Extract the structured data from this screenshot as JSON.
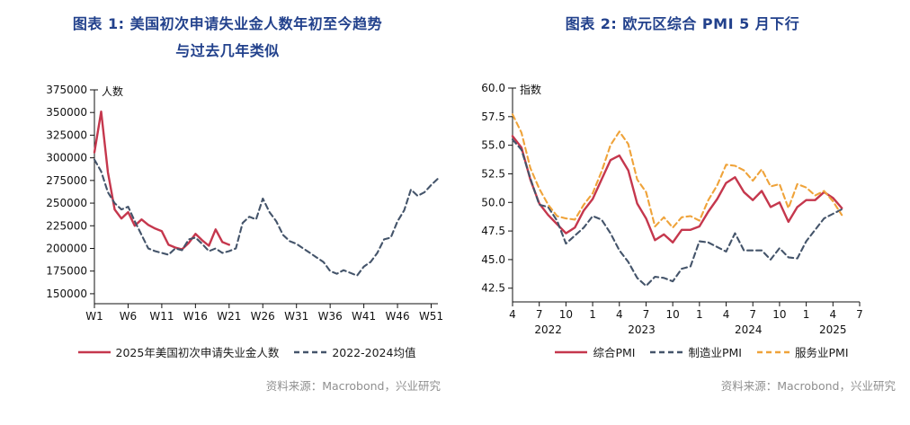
{
  "fig1": {
    "title_line1": "图表 1: 美国初次申请失业金人数年初至今趋势",
    "title_line2": "与过去几年类似",
    "source": "资料来源：Macrobond，兴业研究"
  },
  "fig2": {
    "title_line1": "图表 2: 欧元区综合 PMI 5 月下行",
    "title_line2": "",
    "source": "资料来源：Macrobond，兴业研究"
  },
  "chart_data": [
    {
      "type": "line",
      "title": "美国初次申请失业金人数年初至今趋势与过去几年类似",
      "ylabel": "人数",
      "xlabel": "",
      "ylim": [
        150000,
        375000
      ],
      "grid": false,
      "legend_position": "bottom",
      "x_count": 52,
      "yticks": [
        {
          "v": 150000,
          "label": "150000"
        },
        {
          "v": 175000,
          "label": "175000"
        },
        {
          "v": 200000,
          "label": "200000"
        },
        {
          "v": 225000,
          "label": "225000"
        },
        {
          "v": 250000,
          "label": "250000"
        },
        {
          "v": 275000,
          "label": "275000"
        },
        {
          "v": 300000,
          "label": "300000"
        },
        {
          "v": 325000,
          "label": "325000"
        },
        {
          "v": 350000,
          "label": "350000"
        },
        {
          "v": 375000,
          "label": "375000"
        }
      ],
      "xticks": [
        {
          "pos": 0,
          "label": "W1"
        },
        {
          "pos": 5,
          "label": "W6"
        },
        {
          "pos": 10,
          "label": "W11"
        },
        {
          "pos": 15,
          "label": "W16"
        },
        {
          "pos": 20,
          "label": "W21"
        },
        {
          "pos": 25,
          "label": "W26"
        },
        {
          "pos": 30,
          "label": "W31"
        },
        {
          "pos": 35,
          "label": "W36"
        },
        {
          "pos": 40,
          "label": "W41"
        },
        {
          "pos": 45,
          "label": "W46"
        },
        {
          "pos": 50,
          "label": "W51"
        }
      ],
      "series": [
        {
          "name": "2025年美国初次申请失业金人数",
          "color": "#c5374d",
          "style": "solid",
          "start": 0,
          "values": [
            306000,
            351000,
            284000,
            243000,
            233000,
            240000,
            225000,
            232000,
            226000,
            222000,
            219000,
            204000,
            201000,
            199000,
            206000,
            216000,
            209000,
            203000,
            221000,
            207000,
            204000
          ]
        },
        {
          "name": "2022-2024均值",
          "color": "#44546a",
          "style": "dashed",
          "start": 0,
          "values": [
            298000,
            285000,
            262000,
            250000,
            243000,
            246000,
            230000,
            215000,
            200000,
            197000,
            195000,
            193000,
            200000,
            198000,
            210000,
            212000,
            205000,
            197000,
            200000,
            195000,
            197000,
            200000,
            228000,
            235000,
            232000,
            255000,
            240000,
            230000,
            215000,
            208000,
            205000,
            200000,
            195000,
            190000,
            185000,
            175000,
            172000,
            176000,
            173000,
            170000,
            180000,
            185000,
            195000,
            210000,
            212000,
            230000,
            242000,
            265000,
            258000,
            262000,
            270000,
            277000
          ]
        }
      ]
    },
    {
      "type": "line",
      "title": "欧元区综合 PMI 5 月下行",
      "ylabel": "指数",
      "xlabel": "",
      "ylim": [
        42.5,
        60.0
      ],
      "grid": false,
      "legend_position": "bottom",
      "x_count": 40,
      "yticks": [
        {
          "v": 42.5,
          "label": "42.5"
        },
        {
          "v": 45.0,
          "label": "45.0"
        },
        {
          "v": 47.5,
          "label": "47.5"
        },
        {
          "v": 50.0,
          "label": "50.0"
        },
        {
          "v": 52.5,
          "label": "52.5"
        },
        {
          "v": 55.0,
          "label": "55.0"
        },
        {
          "v": 57.5,
          "label": "57.5"
        },
        {
          "v": 60.0,
          "label": "60.0"
        }
      ],
      "xticks": [
        {
          "pos": 0,
          "label": "4"
        },
        {
          "pos": 3,
          "label": "7"
        },
        {
          "pos": 6,
          "label": "10"
        },
        {
          "pos": 9,
          "label": "1"
        },
        {
          "pos": 12,
          "label": "4"
        },
        {
          "pos": 15,
          "label": "7"
        },
        {
          "pos": 18,
          "label": "10"
        },
        {
          "pos": 21,
          "label": "1"
        },
        {
          "pos": 24,
          "label": "4"
        },
        {
          "pos": 27,
          "label": "7"
        },
        {
          "pos": 30,
          "label": "10"
        },
        {
          "pos": 33,
          "label": "1"
        },
        {
          "pos": 36,
          "label": "4"
        },
        {
          "pos": 39,
          "label": "7"
        }
      ],
      "year_ticks": [
        {
          "pos": 4,
          "label": "2022"
        },
        {
          "pos": 14.5,
          "label": "2023"
        },
        {
          "pos": 26.5,
          "label": "2024"
        },
        {
          "pos": 36,
          "label": "2025"
        }
      ],
      "series": [
        {
          "name": "综合PMI",
          "color": "#c5374d",
          "style": "solid",
          "start": 0,
          "values": [
            55.8,
            54.8,
            52.0,
            49.9,
            48.9,
            48.1,
            47.3,
            47.8,
            49.3,
            50.3,
            52.0,
            53.7,
            54.1,
            52.8,
            49.9,
            48.6,
            46.7,
            47.2,
            46.5,
            47.6,
            47.6,
            47.9,
            49.2,
            50.3,
            51.7,
            52.2,
            50.9,
            50.2,
            51.0,
            49.6,
            50.0,
            48.3,
            49.6,
            50.2,
            50.2,
            50.9,
            50.4,
            49.5
          ]
        },
        {
          "name": "制造业PMI",
          "color": "#44546a",
          "style": "dashed",
          "start": 0,
          "values": [
            55.5,
            54.6,
            52.1,
            49.8,
            49.6,
            48.4,
            46.4,
            47.1,
            47.8,
            48.8,
            48.5,
            47.3,
            45.8,
            44.8,
            43.4,
            42.7,
            43.5,
            43.4,
            43.1,
            44.2,
            44.4,
            46.6,
            46.5,
            46.1,
            45.7,
            47.3,
            45.8,
            45.8,
            45.8,
            45.0,
            46.0,
            45.2,
            45.1,
            46.6,
            47.6,
            48.6,
            49.0,
            49.4
          ]
        },
        {
          "name": "服务业PMI",
          "color": "#efa33a",
          "style": "dashed",
          "start": 0,
          "values": [
            57.7,
            56.1,
            53.0,
            51.2,
            49.8,
            48.8,
            48.6,
            48.5,
            49.8,
            50.8,
            52.7,
            55.0,
            56.2,
            55.1,
            52.0,
            50.9,
            47.9,
            48.7,
            47.8,
            48.7,
            48.8,
            48.4,
            50.2,
            51.5,
            53.3,
            53.2,
            52.8,
            51.9,
            52.9,
            51.4,
            51.6,
            49.5,
            51.6,
            51.3,
            50.6,
            51.0,
            50.1,
            48.9
          ]
        }
      ]
    }
  ]
}
